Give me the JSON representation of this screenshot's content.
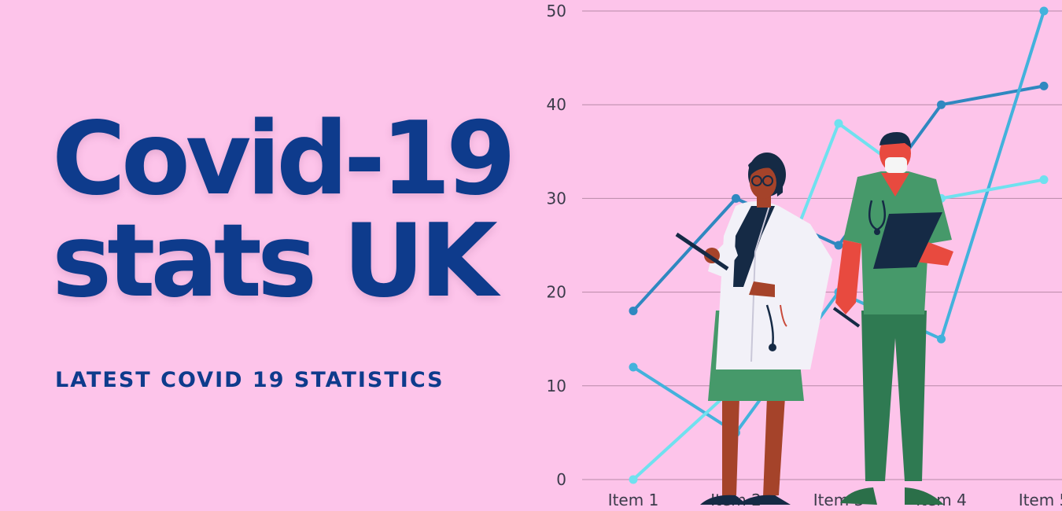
{
  "title_line1": "Covid-19",
  "title_line2": "stats UK",
  "subtitle": "LATEST COVID 19 STATISTICS",
  "colors": {
    "background": "#fdc4ea",
    "title": "#0e3b8c",
    "series_dark": "#2f88c0",
    "series_mid": "#43b2dc",
    "series_light": "#6fe1ef",
    "gridline": "#b88aa8"
  },
  "chart_data": {
    "type": "line",
    "categories": [
      "Item 1",
      "Item 2",
      "Item 3",
      "Item 4",
      "Item 5"
    ],
    "ylim": [
      0,
      50
    ],
    "yticks": [
      0,
      10,
      20,
      30,
      40,
      50
    ],
    "grid": true,
    "series": [
      {
        "values": [
          18,
          30,
          25,
          40,
          42
        ],
        "color": "#2f88c0"
      },
      {
        "values": [
          12,
          5,
          20,
          15,
          50
        ],
        "color": "#43b2dc"
      },
      {
        "values": [
          0,
          10,
          38,
          30,
          32
        ],
        "color": "#6fe1ef"
      }
    ]
  }
}
